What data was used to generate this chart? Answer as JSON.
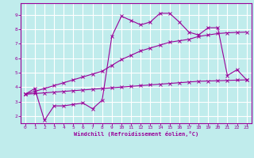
{
  "background_color": "#c0ecec",
  "grid_color": "#ffffff",
  "line_color": "#990099",
  "xlabel": "Windchill (Refroidissement éolien,°C)",
  "xlim": [
    -0.5,
    23.5
  ],
  "ylim": [
    1.5,
    9.8
  ],
  "xticks": [
    0,
    1,
    2,
    3,
    4,
    5,
    6,
    7,
    8,
    9,
    10,
    11,
    12,
    13,
    14,
    15,
    16,
    17,
    18,
    19,
    20,
    21,
    22,
    23
  ],
  "yticks": [
    2,
    3,
    4,
    5,
    6,
    7,
    8,
    9
  ],
  "series1_x": [
    0,
    1,
    2,
    3,
    4,
    5,
    6,
    7,
    8,
    9,
    10,
    11,
    12,
    13,
    14,
    15,
    16,
    17,
    18,
    19,
    20,
    21,
    22,
    23
  ],
  "series1_y": [
    3.5,
    3.9,
    1.7,
    2.7,
    2.7,
    2.8,
    2.9,
    2.5,
    3.1,
    7.5,
    8.9,
    8.6,
    8.3,
    8.5,
    9.1,
    9.1,
    8.5,
    7.8,
    7.6,
    8.1,
    8.1,
    4.8,
    5.2,
    4.5
  ],
  "series2_x": [
    0,
    1,
    2,
    3,
    4,
    5,
    6,
    7,
    8,
    9,
    10,
    11,
    12,
    13,
    14,
    15,
    16,
    17,
    18,
    19,
    20,
    21,
    22,
    23
  ],
  "series2_y": [
    3.5,
    3.55,
    3.6,
    3.65,
    3.7,
    3.75,
    3.8,
    3.85,
    3.9,
    3.95,
    4.0,
    4.05,
    4.1,
    4.15,
    4.2,
    4.25,
    4.3,
    4.35,
    4.4,
    4.42,
    4.44,
    4.46,
    4.48,
    4.5
  ],
  "series3_x": [
    0,
    1,
    2,
    3,
    4,
    5,
    6,
    7,
    8,
    9,
    10,
    11,
    12,
    13,
    14,
    15,
    16,
    17,
    18,
    19,
    20,
    21,
    22,
    23
  ],
  "series3_y": [
    3.5,
    3.7,
    3.9,
    4.1,
    4.3,
    4.5,
    4.7,
    4.9,
    5.1,
    5.5,
    5.9,
    6.2,
    6.5,
    6.7,
    6.9,
    7.1,
    7.2,
    7.3,
    7.5,
    7.6,
    7.7,
    7.75,
    7.78,
    7.8
  ]
}
